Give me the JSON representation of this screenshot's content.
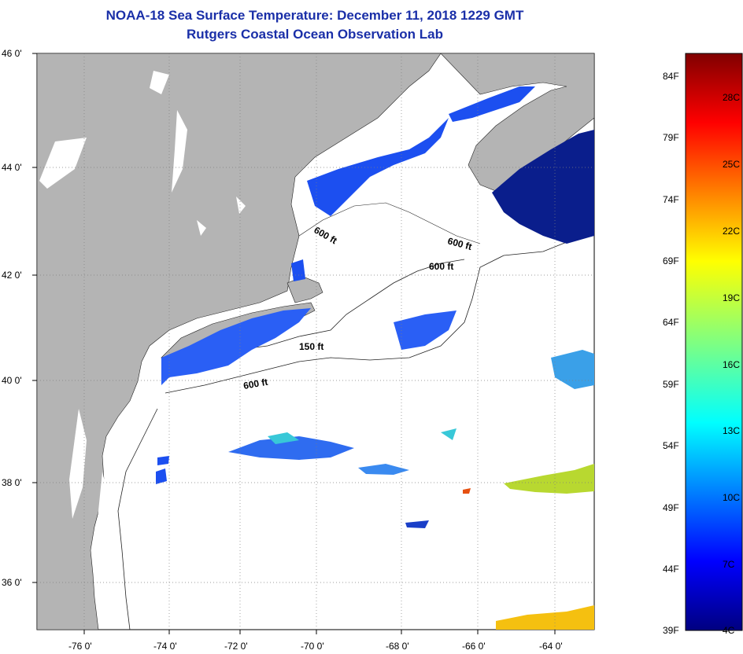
{
  "header": {
    "title": "NOAA-18 Sea Surface Temperature:  December 11, 2018 1229 GMT",
    "subtitle": "Rutgers Coastal Ocean Observation Lab"
  },
  "map": {
    "lat_labels": [
      "46 0'",
      "44 0'",
      "42 0'",
      "40 0'",
      "38 0'",
      "36 0'"
    ],
    "lon_labels": [
      "-76 0'",
      "-74 0'",
      "-72 0'",
      "-70 0'",
      "-68 0'",
      "-66 0'",
      "-64 0'"
    ],
    "contour_labels": [
      "600 ft",
      "600 ft",
      "600 ft",
      "150 ft",
      "600 ft"
    ],
    "colors": {
      "land": "#b4b4b4",
      "ocean_cloud": "#ffffff",
      "grid": "#808080"
    }
  },
  "colorbar": {
    "fahrenheit": [
      "84F",
      "79F",
      "74F",
      "69F",
      "64F",
      "59F",
      "54F",
      "49F",
      "44F",
      "39F"
    ],
    "celsius": [
      "28C",
      "25C",
      "22C",
      "19C",
      "16C",
      "13C",
      "10C",
      "7C",
      "4C"
    ]
  }
}
